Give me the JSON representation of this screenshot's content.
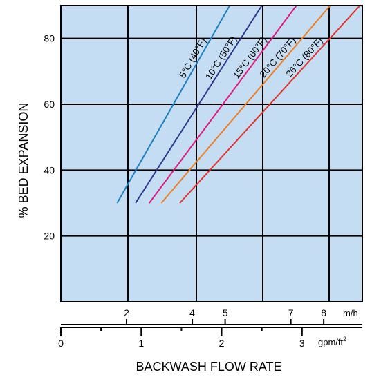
{
  "chart_data": {
    "type": "line",
    "title": "",
    "ylabel": "% BED EXPANSION",
    "xlabel": "BACKWASH FLOW RATE",
    "ylim": [
      0,
      90
    ],
    "yticks": [
      20,
      40,
      60,
      80
    ],
    "y_tick_labels": [
      "20",
      "40",
      "60",
      "80"
    ],
    "grid": true,
    "plot_background": "#c5ddf2",
    "grid_color": "#000000",
    "x_primary": {
      "unit": "gpm/ft",
      "unit_superscript": "2",
      "xlim": [
        0,
        3.75
      ],
      "ticks": [
        0,
        1,
        2,
        3
      ],
      "tick_labels": [
        "0",
        "1",
        "2",
        "3"
      ],
      "minor_ticks": [
        0.5,
        1.5,
        2.5
      ]
    },
    "x_secondary": {
      "unit": "m/h",
      "ticks": [
        2,
        4,
        5,
        7,
        8
      ],
      "tick_labels": [
        "2",
        "4",
        "5",
        "7",
        "8"
      ]
    },
    "series": [
      {
        "name": "5°C (40°F)",
        "color": "#1a7fc4",
        "x": [
          0.7,
          2.1
        ],
        "y": [
          30,
          90
        ]
      },
      {
        "name": "10°C (50°F)",
        "color": "#2d3590",
        "x": [
          0.93,
          2.5
        ],
        "y": [
          30,
          90
        ]
      },
      {
        "name": "15°C (60°F)",
        "color": "#e0187f",
        "x": [
          1.1,
          2.93
        ],
        "y": [
          30,
          90
        ]
      },
      {
        "name": "20°C (70°F)",
        "color": "#ee7d20",
        "x": [
          1.25,
          3.35
        ],
        "y": [
          30,
          90
        ]
      },
      {
        "name": "26°C (80°F)",
        "color": "#e4322b",
        "x": [
          1.48,
          3.72
        ],
        "y": [
          30,
          90
        ]
      }
    ]
  }
}
